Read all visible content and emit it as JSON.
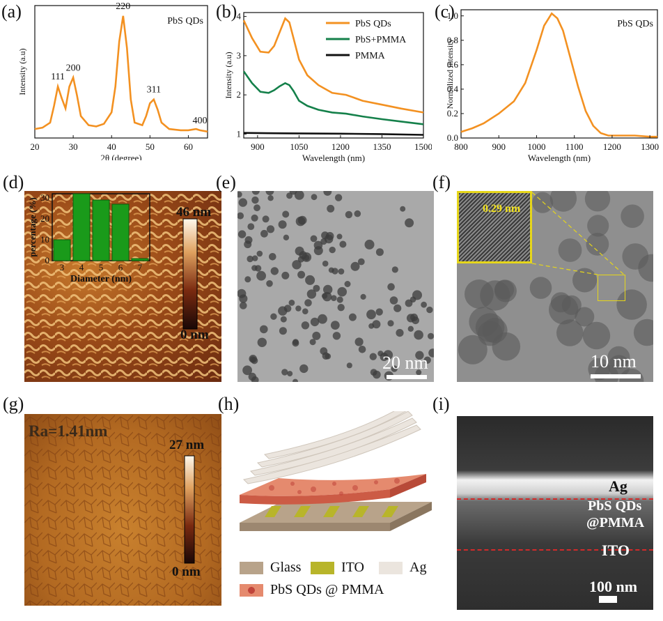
{
  "panels": {
    "a": {
      "label": "(a)",
      "legend": "PbS QDs",
      "peaks": [
        "111",
        "200",
        "220",
        "311",
        "400"
      ]
    },
    "b": {
      "label": "(b)"
    },
    "c": {
      "label": "(c)",
      "legend": "PbS QDs"
    },
    "d": {
      "label": "(d)",
      "colorbar_max": "46 nm",
      "colorbar_min": "0 nm"
    },
    "e": {
      "label": "(e)",
      "scalebar": "20 nm"
    },
    "f": {
      "label": "(f)",
      "scalebar": "10 nm",
      "lattice": "0.29 nm"
    },
    "g": {
      "label": "(g)",
      "ra": "Ra=1.41nm",
      "colorbar_max": "27 nm",
      "colorbar_min": "0 nm"
    },
    "h": {
      "label": "(h)",
      "legend": [
        {
          "label": "Glass",
          "color": "#b8a38a"
        },
        {
          "label": "ITO",
          "color": "#b8b52a"
        },
        {
          "label": "Ag",
          "color": "#ebe5de"
        },
        {
          "label": "PbS QDs @ PMMA",
          "color": "#e06a50"
        }
      ]
    },
    "i": {
      "label": "(i)",
      "layers": [
        "Ag",
        "PbS QDs",
        "@PMMA",
        "ITO"
      ],
      "scalebar": "100 nm"
    }
  },
  "chart_data": [
    {
      "type": "line",
      "panel": "a",
      "xlabel": "2θ (degree)",
      "ylabel": "Intensity (a.u)",
      "xlim": [
        20,
        65
      ],
      "xticks": [
        20,
        30,
        40,
        50,
        60
      ],
      "series": [
        {
          "name": "PbS QDs",
          "color": "#f39121",
          "x": [
            20,
            22,
            24,
            25,
            26,
            27,
            28,
            29,
            30,
            31,
            32,
            34,
            36,
            38,
            40,
            41,
            42,
            43,
            44,
            45,
            46,
            48,
            49,
            50,
            51,
            52,
            53,
            55,
            58,
            60,
            62,
            63,
            65
          ],
          "y": [
            0.12,
            0.13,
            0.17,
            0.3,
            0.45,
            0.36,
            0.28,
            0.45,
            0.52,
            0.38,
            0.22,
            0.15,
            0.14,
            0.16,
            0.25,
            0.45,
            0.8,
            1.0,
            0.75,
            0.35,
            0.17,
            0.15,
            0.22,
            0.32,
            0.35,
            0.27,
            0.17,
            0.12,
            0.11,
            0.11,
            0.12,
            0.11,
            0.1
          ]
        }
      ]
    },
    {
      "type": "line",
      "panel": "b",
      "xlabel": "Wavelength (nm)",
      "ylabel": "Intensity (a.u)",
      "xlim": [
        850,
        1500
      ],
      "ylim": [
        0.9,
        4.1
      ],
      "xticks": [
        900,
        1050,
        1200,
        1350,
        1500
      ],
      "yticks": [
        1,
        2,
        3,
        4
      ],
      "legend_position": "top-right",
      "series": [
        {
          "name": "PbS QDs",
          "color": "#f39121",
          "x": [
            850,
            880,
            910,
            940,
            960,
            980,
            1000,
            1015,
            1030,
            1050,
            1080,
            1120,
            1170,
            1220,
            1280,
            1350,
            1420,
            1500
          ],
          "y": [
            3.9,
            3.45,
            3.1,
            3.08,
            3.25,
            3.6,
            3.95,
            3.85,
            3.45,
            2.9,
            2.5,
            2.25,
            2.05,
            2.0,
            1.85,
            1.75,
            1.65,
            1.55
          ]
        },
        {
          "name": "PbS+PMMA",
          "color": "#14804a",
          "x": [
            850,
            880,
            910,
            940,
            960,
            980,
            1000,
            1015,
            1030,
            1050,
            1080,
            1120,
            1170,
            1220,
            1280,
            1350,
            1420,
            1500
          ],
          "y": [
            2.6,
            2.3,
            2.08,
            2.05,
            2.12,
            2.22,
            2.3,
            2.25,
            2.1,
            1.85,
            1.72,
            1.62,
            1.55,
            1.52,
            1.45,
            1.38,
            1.32,
            1.25
          ]
        },
        {
          "name": "PMMA",
          "color": "#111111",
          "x": [
            850,
            1000,
            1200,
            1350,
            1500
          ],
          "y": [
            1.03,
            1.02,
            1.01,
            1.0,
            0.98
          ]
        }
      ]
    },
    {
      "type": "line",
      "panel": "c",
      "xlabel": "Wavelength (nm)",
      "ylabel": "Normalized intensity",
      "xlim": [
        800,
        1320
      ],
      "ylim": [
        0,
        1.05
      ],
      "xticks": [
        800,
        900,
        1000,
        1100,
        1200,
        1300
      ],
      "yticks": [
        0.0,
        0.2,
        0.4,
        0.6,
        0.8,
        1.0
      ],
      "series": [
        {
          "name": "PbS QDs",
          "color": "#f39121",
          "x": [
            800,
            830,
            860,
            900,
            940,
            970,
            1000,
            1020,
            1040,
            1055,
            1070,
            1090,
            1110,
            1130,
            1150,
            1170,
            1190,
            1220,
            1260,
            1300,
            1320
          ],
          "y": [
            0.05,
            0.08,
            0.12,
            0.2,
            0.3,
            0.45,
            0.72,
            0.92,
            1.02,
            0.98,
            0.88,
            0.65,
            0.42,
            0.22,
            0.1,
            0.04,
            0.02,
            0.02,
            0.02,
            0.01,
            0.01
          ]
        }
      ]
    },
    {
      "type": "bar",
      "panel": "d-inset",
      "xlabel": "Diameter (nm)",
      "ylabel": "percentage (%)",
      "categories": [
        "3",
        "4",
        "5",
        "6",
        "7"
      ],
      "values": [
        10,
        32,
        29,
        27,
        1
      ],
      "ylim": [
        0,
        32
      ],
      "yticks": [
        0,
        10,
        20,
        30
      ]
    }
  ]
}
